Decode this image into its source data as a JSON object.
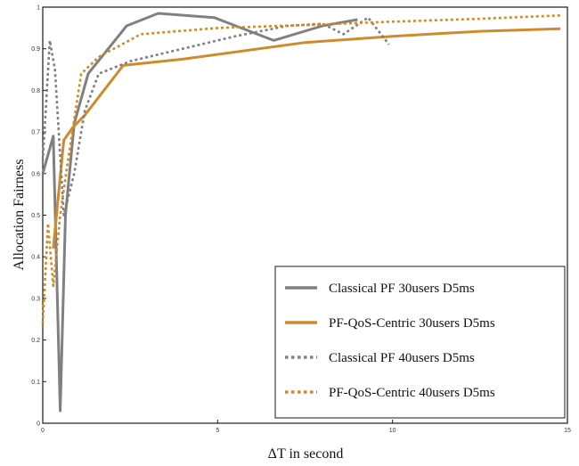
{
  "chart_data": {
    "type": "line",
    "xlabel": "ΔT in second",
    "ylabel": "Allocation Fairness",
    "xlim": [
      0,
      15
    ],
    "ylim": [
      0,
      1
    ],
    "xticks": [
      "0",
      "5",
      "10",
      "15"
    ],
    "yticks": [
      "0",
      "0.1",
      "0.2",
      "0.3",
      "0.4",
      "0.5",
      "0.6",
      "0.7",
      "0.8",
      "0.9",
      "1"
    ],
    "grid": false,
    "legend_position": "bottom-right",
    "colors": {
      "classical": "#808080",
      "qos": "#d08a2e"
    },
    "series": [
      {
        "name": "Classical PF 30users D5ms",
        "style": "solid",
        "color_key": "classical",
        "x": [
          0,
          0.3,
          0.5,
          0.65,
          0.9,
          1.3,
          2.4,
          3.3,
          4.9,
          6.6,
          8.0,
          9.0
        ],
        "y": [
          0.6,
          0.69,
          0.03,
          0.5,
          0.72,
          0.84,
          0.955,
          0.985,
          0.975,
          0.92,
          0.955,
          0.97
        ]
      },
      {
        "name": "PF-QoS-Centric 30users D5ms",
        "style": "solid",
        "color_key": "qos",
        "x": [
          0.3,
          0.45,
          0.6,
          0.85,
          1.2,
          2.3,
          4.0,
          7.5,
          10.0,
          12.5,
          14.8
        ],
        "y": [
          0.42,
          0.55,
          0.68,
          0.71,
          0.74,
          0.86,
          0.875,
          0.915,
          0.93,
          0.942,
          0.948
        ]
      },
      {
        "name": "Classical PF 40users D5ms",
        "style": "dotted",
        "color_key": "classical",
        "x": [
          0,
          0.2,
          0.35,
          0.6,
          0.9,
          1.2,
          1.6,
          2.5,
          4.0,
          5.5,
          7.0,
          8.0,
          8.6,
          9.3,
          9.9
        ],
        "y": [
          0.63,
          0.92,
          0.85,
          0.5,
          0.6,
          0.75,
          0.84,
          0.87,
          0.9,
          0.93,
          0.955,
          0.96,
          0.935,
          0.975,
          0.91
        ]
      },
      {
        "name": "PF-QoS-Centric 40users D5ms",
        "style": "dotted",
        "color_key": "qos",
        "x": [
          0,
          0.15,
          0.3,
          0.5,
          0.7,
          1.1,
          1.6,
          2.8,
          5.0,
          7.5,
          10.0,
          12.5,
          14.8
        ],
        "y": [
          0.24,
          0.48,
          0.33,
          0.5,
          0.62,
          0.84,
          0.88,
          0.935,
          0.95,
          0.957,
          0.965,
          0.972,
          0.98
        ]
      }
    ]
  }
}
